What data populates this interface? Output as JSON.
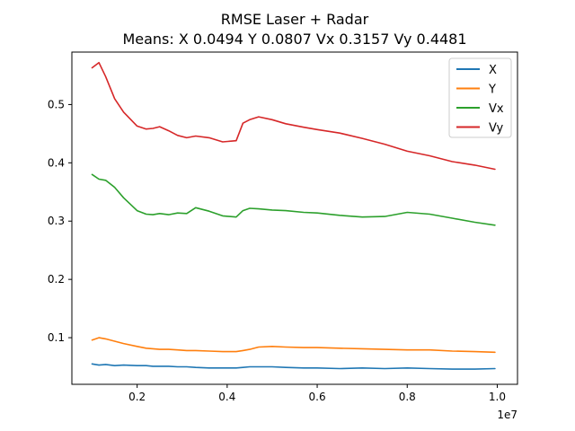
{
  "chart_data": {
    "type": "line",
    "title": "RMSE Laser + Radar",
    "subtitle": "Means: X 0.0494 Y 0.0807 Vx 0.3157 Vy 0.4481",
    "xlabel": "",
    "ylabel": "",
    "x_offset_label": "1e7",
    "xlim": [
      1000000,
      10000000
    ],
    "ylim": [
      0.02,
      0.59
    ],
    "xticks": [
      2000000,
      4000000,
      6000000,
      8000000,
      10000000
    ],
    "xtick_labels": [
      "0.2",
      "0.4",
      "0.6",
      "0.8",
      "1.0"
    ],
    "yticks": [
      0.1,
      0.2,
      0.3,
      0.4,
      0.5
    ],
    "ytick_labels": [
      "0.1",
      "0.2",
      "0.3",
      "0.4",
      "0.5"
    ],
    "grid": false,
    "legend_position": "top-right",
    "x": [
      1000000,
      1150000,
      1300000,
      1500000,
      1700000,
      2000000,
      2200000,
      2350000,
      2500000,
      2700000,
      2900000,
      3100000,
      3300000,
      3600000,
      3900000,
      4200000,
      4350000,
      4500000,
      4700000,
      5000000,
      5300000,
      5700000,
      6000000,
      6500000,
      7000000,
      7500000,
      8000000,
      8500000,
      9000000,
      9500000,
      9950000
    ],
    "series": [
      {
        "name": "X",
        "color": "#1f77b4",
        "values": [
          0.055,
          0.053,
          0.054,
          0.052,
          0.053,
          0.052,
          0.052,
          0.051,
          0.051,
          0.051,
          0.05,
          0.05,
          0.049,
          0.048,
          0.048,
          0.048,
          0.049,
          0.05,
          0.05,
          0.05,
          0.049,
          0.048,
          0.048,
          0.047,
          0.048,
          0.047,
          0.048,
          0.047,
          0.046,
          0.046,
          0.047
        ]
      },
      {
        "name": "Y",
        "color": "#ff7f0e",
        "values": [
          0.096,
          0.1,
          0.098,
          0.094,
          0.09,
          0.085,
          0.082,
          0.081,
          0.08,
          0.08,
          0.079,
          0.078,
          0.078,
          0.077,
          0.076,
          0.076,
          0.078,
          0.08,
          0.084,
          0.085,
          0.084,
          0.083,
          0.083,
          0.082,
          0.081,
          0.08,
          0.079,
          0.079,
          0.077,
          0.076,
          0.075
        ]
      },
      {
        "name": "Vx",
        "color": "#2ca02c",
        "values": [
          0.38,
          0.372,
          0.37,
          0.358,
          0.34,
          0.318,
          0.312,
          0.311,
          0.313,
          0.311,
          0.314,
          0.313,
          0.323,
          0.317,
          0.309,
          0.307,
          0.318,
          0.322,
          0.321,
          0.319,
          0.318,
          0.315,
          0.314,
          0.31,
          0.307,
          0.308,
          0.315,
          0.312,
          0.305,
          0.298,
          0.293
        ]
      },
      {
        "name": "Vy",
        "color": "#d62728",
        "values": [
          0.563,
          0.572,
          0.548,
          0.51,
          0.487,
          0.463,
          0.458,
          0.459,
          0.462,
          0.455,
          0.447,
          0.443,
          0.446,
          0.443,
          0.436,
          0.438,
          0.468,
          0.474,
          0.479,
          0.474,
          0.467,
          0.461,
          0.457,
          0.451,
          0.442,
          0.432,
          0.42,
          0.412,
          0.402,
          0.396,
          0.389
        ]
      }
    ]
  }
}
